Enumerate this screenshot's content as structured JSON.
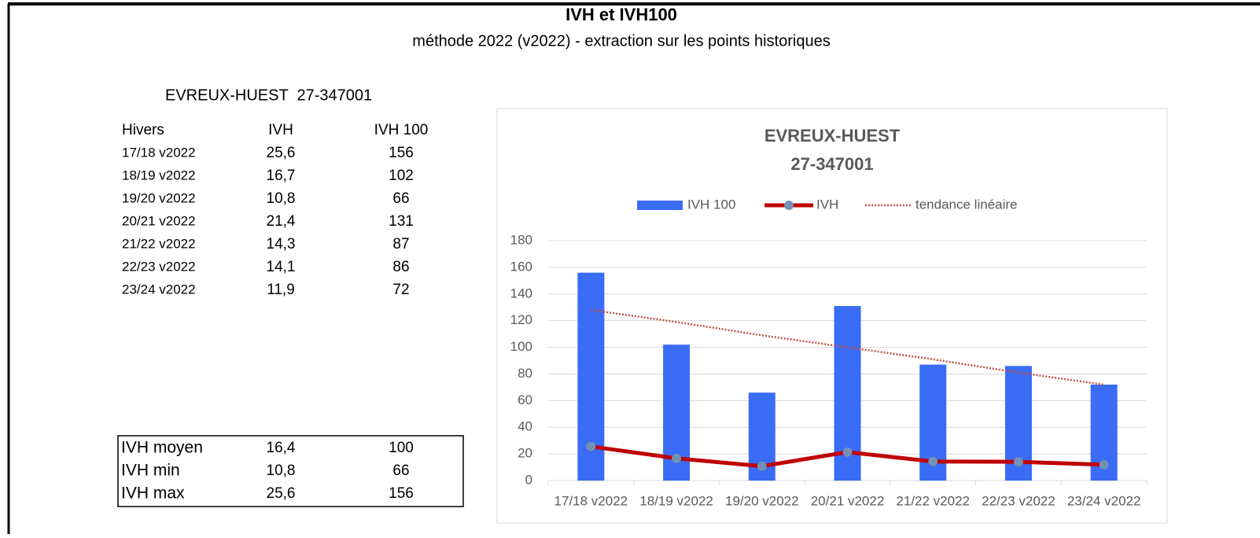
{
  "header": {
    "title": "IVH et IVH100",
    "subtitle": "méthode 2022 (v2022) - extraction sur les points historiques"
  },
  "station": "EVREUX-HUEST  27-347001",
  "table": {
    "columns": [
      "Hivers",
      "IVH",
      "IVH 100"
    ],
    "rows": [
      [
        "17/18 v2022",
        "25,6",
        "156"
      ],
      [
        "18/19 v2022",
        "16,7",
        "102"
      ],
      [
        "19/20 v2022",
        "10,8",
        "66"
      ],
      [
        "20/21 v2022",
        "21,4",
        "131"
      ],
      [
        "21/22 v2022",
        "14,3",
        "87"
      ],
      [
        "22/23 v2022",
        "14,1",
        "86"
      ],
      [
        "23/24 v2022",
        "11,9",
        "72"
      ]
    ]
  },
  "summary": {
    "rows": [
      [
        "IVH moyen",
        "16,4",
        "100"
      ],
      [
        "IVH min",
        "10,8",
        "66"
      ],
      [
        "IVH max",
        "25,6",
        "156"
      ]
    ]
  },
  "chart_data": {
    "type": "bar",
    "title": [
      "EVREUX-HUEST",
      "27-347001"
    ],
    "categories": [
      "17/18 v2022",
      "18/19 v2022",
      "19/20 v2022",
      "20/21 v2022",
      "21/22 v2022",
      "22/23 v2022",
      "23/24 v2022"
    ],
    "series": [
      {
        "name": "IVH 100",
        "type": "bar",
        "color": "#3a6cf6",
        "values": [
          156,
          102,
          66,
          131,
          87,
          86,
          72
        ]
      },
      {
        "name": "IVH",
        "type": "line",
        "color": "#c00000",
        "marker_color": "#7391b4",
        "values": [
          25.6,
          16.7,
          10.8,
          21.4,
          14.3,
          14.1,
          11.9
        ]
      },
      {
        "name": "tendance linéaire",
        "type": "trend",
        "color": "#c0504d",
        "values": [
          128,
          119,
          109,
          100,
          91,
          81,
          72
        ]
      }
    ],
    "ylim": [
      0,
      180
    ],
    "yticks": [
      0,
      20,
      40,
      60,
      80,
      100,
      120,
      140,
      160,
      180
    ],
    "grid": true,
    "legend": "top"
  }
}
